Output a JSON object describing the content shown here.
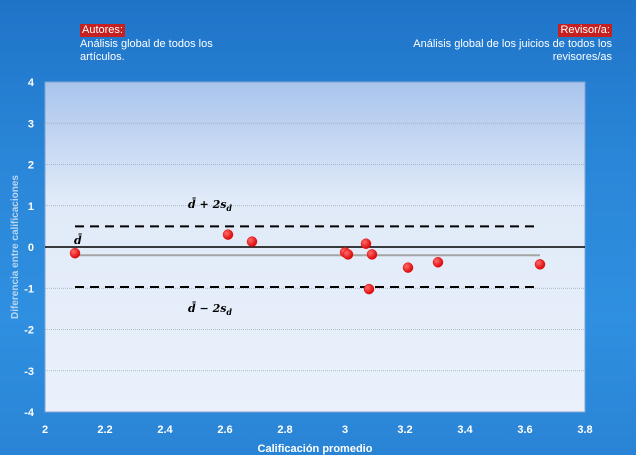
{
  "annotations": {
    "left_tag": "Autores:",
    "left_text": "Análisis global de todos los artículos.",
    "right_tag": "Revisor/a:",
    "right_text": "Análisis global de los juicios de todos los revisores/as"
  },
  "chart_data": {
    "type": "scatter",
    "xlabel": "Calificación  promedio",
    "ylabel": "Diferencia entre calificaciones",
    "xlim": [
      2,
      3.8
    ],
    "ylim": [
      -4,
      4
    ],
    "x_ticks": [
      "2",
      "2.2",
      "2.4",
      "2.6",
      "2.8",
      "3",
      "3.2",
      "3.4",
      "3.6",
      "3.8"
    ],
    "y_ticks": [
      "4",
      "3",
      "2",
      "1",
      "0",
      "-1",
      "-2",
      "-3",
      "-4"
    ],
    "grid": true,
    "points": [
      {
        "x": 2.1,
        "y": -0.15
      },
      {
        "x": 2.61,
        "y": 0.3
      },
      {
        "x": 2.69,
        "y": 0.13
      },
      {
        "x": 3.0,
        "y": -0.13
      },
      {
        "x": 3.01,
        "y": -0.18
      },
      {
        "x": 3.07,
        "y": 0.08
      },
      {
        "x": 3.08,
        "y": -1.02
      },
      {
        "x": 3.09,
        "y": -0.18
      },
      {
        "x": 3.21,
        "y": -0.5
      },
      {
        "x": 3.31,
        "y": -0.37
      },
      {
        "x": 3.65,
        "y": -0.42
      }
    ],
    "mean": -0.2,
    "upper_limit": 0.5,
    "lower_limit": -0.97,
    "mean_label": "d̄",
    "upper_label": "d̄ + 2s",
    "lower_label": "d̄ − 2s",
    "subscript": "d",
    "colors": {
      "point": "#e81212",
      "plot_bg": "#dfe9f8",
      "zero_line": "#000000",
      "mean_line": "#a5a5a5"
    }
  }
}
